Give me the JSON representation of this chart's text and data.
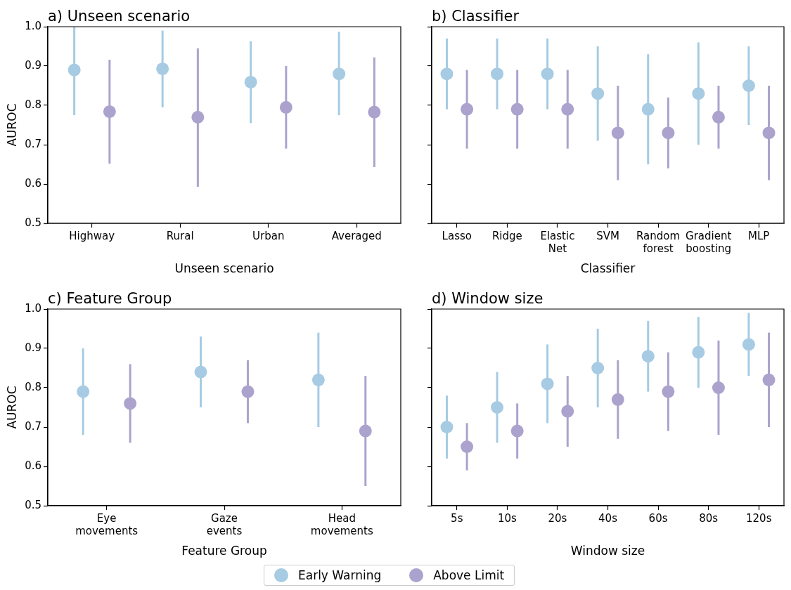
{
  "chart_data": [
    {
      "type": "scatter",
      "title": "a) Unseen scenario",
      "xlabel": "Unseen scenario",
      "ylabel": "AUROC",
      "categories": [
        "Highway",
        "Rural",
        "Urban",
        "Averaged"
      ],
      "ylim": [
        0.5,
        1.0
      ],
      "yticks": [
        0.5,
        0.6,
        0.7,
        0.8,
        0.9,
        {
          "value": 1.0,
          "label": "1.0"
        }
      ],
      "marker": "circle",
      "legend": "bottom",
      "series": [
        {
          "name": "Early Warning",
          "color": "#a6cbe3",
          "values": [
            0.89,
            0.893,
            0.859,
            0.88
          ],
          "errors": [
            [
              0.775,
              1.0
            ],
            [
              0.795,
              0.99
            ],
            [
              0.755,
              0.963
            ],
            [
              0.775,
              0.987
            ]
          ]
        },
        {
          "name": "Above Limit",
          "color": "#aba3cd",
          "values": [
            0.784,
            0.77,
            0.795,
            0.783
          ],
          "errors": [
            [
              0.652,
              0.916
            ],
            [
              0.593,
              0.945
            ],
            [
              0.69,
              0.9
            ],
            [
              0.643,
              0.922
            ]
          ]
        }
      ]
    },
    {
      "type": "scatter",
      "title": "b) Classifier",
      "xlabel": "Classifier",
      "categories": [
        "Lasso",
        "Ridge",
        "Elastic Net",
        "SVM",
        "Random forest",
        "Gradient boosting",
        "MLP"
      ],
      "ylim": [
        0.5,
        1.0
      ],
      "yticks": [
        0.5,
        0.6,
        0.7,
        0.8,
        0.9,
        1.0
      ],
      "tick_labels": "x",
      "marker": "circle",
      "series": [
        {
          "color": "#a6cbe3",
          "values": [
            0.88,
            0.88,
            0.88,
            0.83,
            0.79,
            0.83,
            0.85
          ],
          "errors": [
            [
              0.79,
              0.97
            ],
            [
              0.79,
              0.97
            ],
            [
              0.79,
              0.97
            ],
            [
              0.71,
              0.95
            ],
            [
              0.65,
              0.93
            ],
            [
              0.7,
              0.96
            ],
            [
              0.75,
              0.95
            ]
          ]
        },
        {
          "color": "#aba3cd",
          "values": [
            0.79,
            0.79,
            0.79,
            0.73,
            0.73,
            0.77,
            0.73
          ],
          "errors": [
            [
              0.69,
              0.89
            ],
            [
              0.69,
              0.89
            ],
            [
              0.69,
              0.89
            ],
            [
              0.61,
              0.85
            ],
            [
              0.64,
              0.82
            ],
            [
              0.69,
              0.85
            ],
            [
              0.61,
              0.85
            ]
          ]
        }
      ]
    },
    {
      "type": "scatter",
      "title": "c) Feature Group",
      "xlabel": "Feature Group",
      "ylabel": "AUROC",
      "categories": [
        "Eye movements",
        "Gaze events",
        "Head movements"
      ],
      "ylim": [
        0.5,
        1.0
      ],
      "yticks": [
        0.5,
        0.6,
        0.7,
        0.8,
        0.9,
        {
          "value": 1.0,
          "label": "1.0"
        }
      ],
      "marker": "circle",
      "series": [
        {
          "color": "#a6cbe3",
          "values": [
            0.79,
            0.84,
            0.82
          ],
          "errors": [
            [
              0.68,
              0.9
            ],
            [
              0.75,
              0.93
            ],
            [
              0.7,
              0.94
            ]
          ]
        },
        {
          "color": "#aba3cd",
          "values": [
            0.76,
            0.79,
            0.69
          ],
          "errors": [
            [
              0.66,
              0.86
            ],
            [
              0.71,
              0.87
            ],
            [
              0.55,
              0.83
            ]
          ]
        }
      ]
    },
    {
      "type": "scatter",
      "title": "d) Window size",
      "xlabel": "Window size",
      "categories": [
        "5s",
        "10s",
        "20s",
        "40s",
        "60s",
        "80s",
        "120s"
      ],
      "ylim": [
        0.5,
        1.0
      ],
      "yticks": [
        0.5,
        0.6,
        0.7,
        0.8,
        0.9,
        1.0
      ],
      "tick_labels": "x",
      "marker": "circle",
      "series": [
        {
          "color": "#a6cbe3",
          "values": [
            0.7,
            0.75,
            0.81,
            0.85,
            0.88,
            0.89,
            0.91
          ],
          "errors": [
            [
              0.62,
              0.78
            ],
            [
              0.66,
              0.84
            ],
            [
              0.71,
              0.91
            ],
            [
              0.75,
              0.95
            ],
            [
              0.79,
              0.97
            ],
            [
              0.8,
              0.98
            ],
            [
              0.83,
              0.99
            ]
          ]
        },
        {
          "color": "#aba3cd",
          "values": [
            0.65,
            0.69,
            0.74,
            0.77,
            0.79,
            0.8,
            0.82
          ],
          "errors": [
            [
              0.59,
              0.71
            ],
            [
              0.62,
              0.76
            ],
            [
              0.65,
              0.83
            ],
            [
              0.67,
              0.87
            ],
            [
              0.69,
              0.89
            ],
            [
              0.68,
              0.92
            ],
            [
              0.7,
              0.94
            ]
          ]
        }
      ]
    }
  ]
}
